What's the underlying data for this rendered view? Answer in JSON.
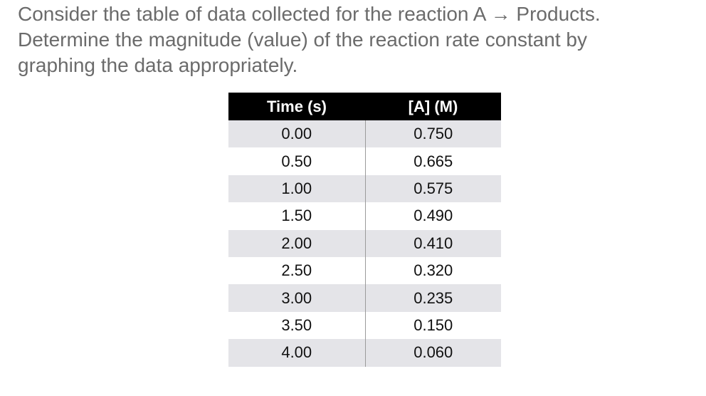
{
  "question": {
    "lines": [
      "Consider the table of data collected for the reaction A → Products.",
      "Determine the magnitude (value) of the reaction rate constant by",
      "graphing the data appropriately."
    ]
  },
  "table": {
    "headers": [
      "Time (s)",
      "[A] (M)"
    ],
    "rows": [
      [
        "0.00",
        "0.750"
      ],
      [
        "0.50",
        "0.665"
      ],
      [
        "1.00",
        "0.575"
      ],
      [
        "1.50",
        "0.490"
      ],
      [
        "2.00",
        "0.410"
      ],
      [
        "2.50",
        "0.320"
      ],
      [
        "3.00",
        "0.235"
      ],
      [
        "3.50",
        "0.150"
      ],
      [
        "4.00",
        "0.060"
      ]
    ]
  },
  "colors": {
    "question_text": "#6b6b6b",
    "header_background": "#000000",
    "header_text": "#ffffff",
    "row_stripe": "#e4e4e8",
    "column_divider": "#9a9a9a"
  }
}
